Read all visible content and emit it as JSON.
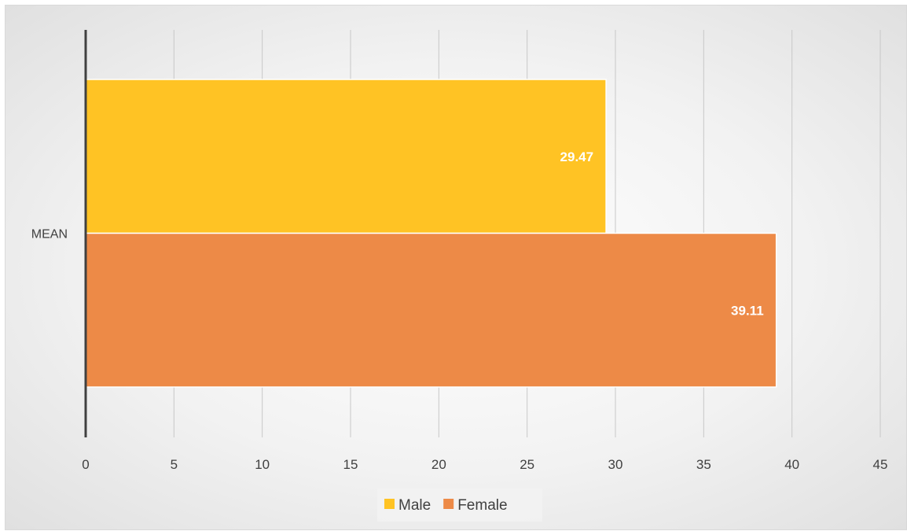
{
  "chart_data": {
    "type": "bar",
    "orientation": "horizontal",
    "categories": [
      "MEAN"
    ],
    "series": [
      {
        "name": "Male",
        "values": [
          29.47
        ],
        "color": "#FFC324"
      },
      {
        "name": "Female",
        "values": [
          39.11
        ],
        "color": "#ED8A47"
      }
    ],
    "value_labels": [
      "29.47",
      "39.11"
    ],
    "xlim": [
      0,
      45
    ],
    "xticks": [
      0,
      5,
      10,
      15,
      20,
      25,
      30,
      35,
      40,
      45
    ],
    "title": "",
    "xlabel": "",
    "ylabel": "",
    "grid": true,
    "legend": "bottom"
  }
}
